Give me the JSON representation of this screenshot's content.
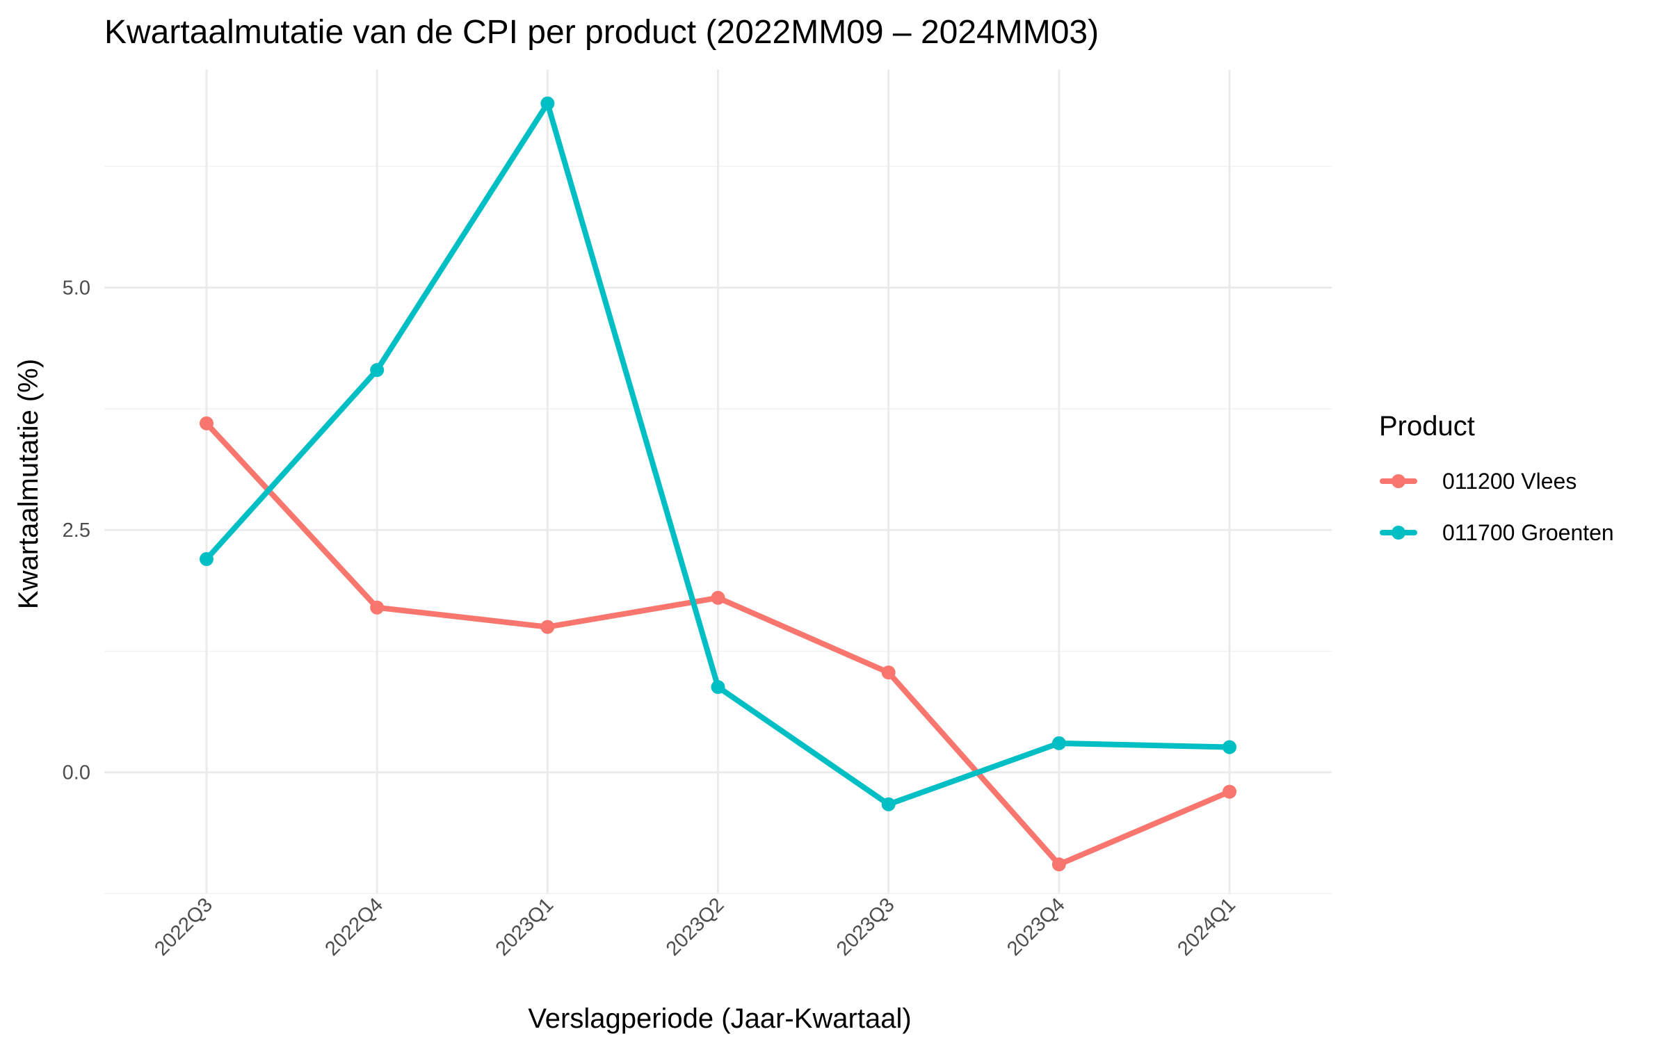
{
  "chart_data": {
    "type": "line",
    "title": "Kwartaalmutatie van de CPI per product (2022MM09 – 2024MM03)",
    "xlabel": "Verslagperiode (Jaar-Kwartaal)",
    "ylabel": "Kwartaalmutatie (%)",
    "categories": [
      "2022Q3",
      "2022Q4",
      "2023Q1",
      "2023Q2",
      "2023Q3",
      "2023Q4",
      "2024Q1"
    ],
    "ylim": [
      -1.25,
      7.25
    ],
    "y_major_ticks": [
      0,
      2.5,
      5
    ],
    "y_tick_labels": [
      "0.0",
      "2.5",
      "5.0"
    ],
    "y_minor_ticks": [
      -1.25,
      1.25,
      3.75,
      6.25
    ],
    "grid": true,
    "series": [
      {
        "name": "011200 Vlees",
        "color": "#F8766D",
        "values": [
          3.6,
          1.7,
          1.5,
          1.8,
          1.03,
          -0.95,
          -0.2
        ]
      },
      {
        "name": "011700 Groenten",
        "color": "#00BFC4",
        "values": [
          2.2,
          4.15,
          6.9,
          0.88,
          -0.33,
          0.3,
          0.26
        ]
      }
    ],
    "legend": {
      "title": "Product",
      "position": "right"
    }
  }
}
